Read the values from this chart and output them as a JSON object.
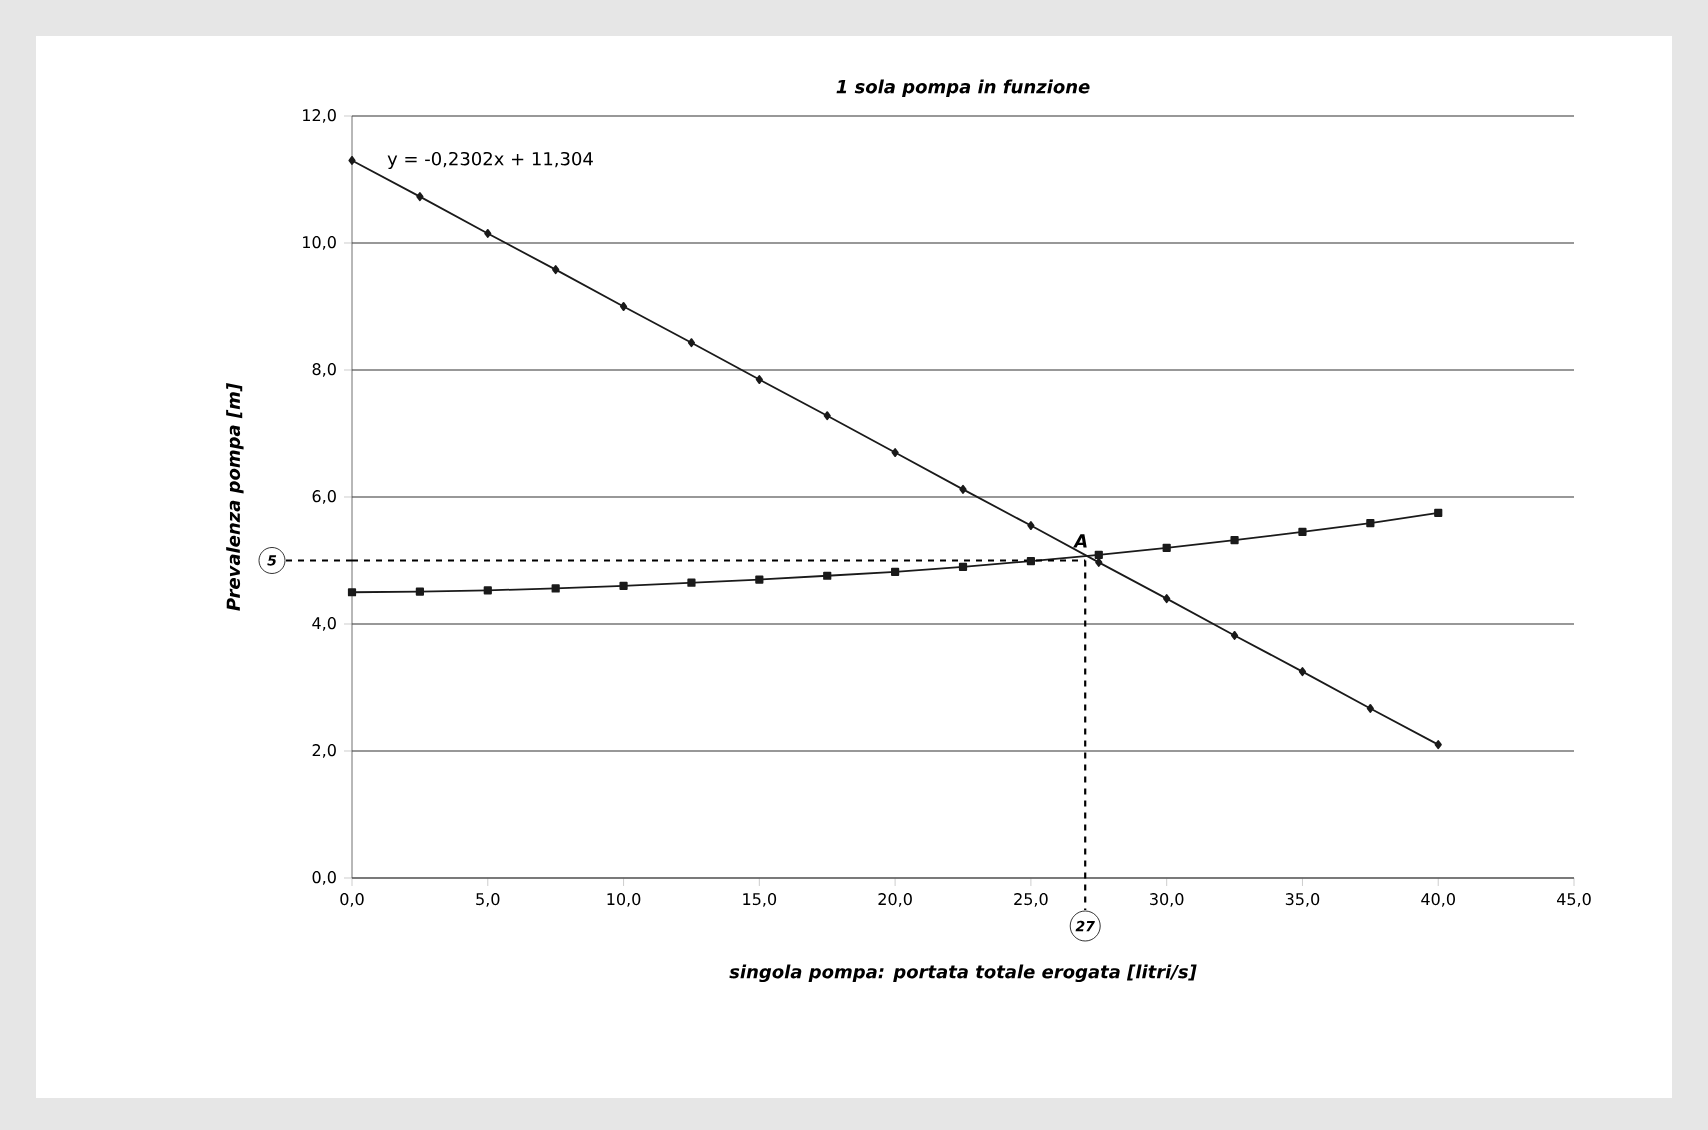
{
  "chart_data": {
    "type": "line",
    "title": "1 sola pompa in funzione",
    "xlabel": "singola pompa:   portata totale erogata [litri/s]",
    "ylabel": "Prevalenza  pompa [m]",
    "xlim": [
      0,
      45
    ],
    "ylim": [
      0,
      12
    ],
    "xticks": [
      {
        "value": 0,
        "label": "0,0"
      },
      {
        "value": 5,
        "label": "5,0"
      },
      {
        "value": 10,
        "label": "10,0"
      },
      {
        "value": 15,
        "label": "15,0"
      },
      {
        "value": 20,
        "label": "20,0"
      },
      {
        "value": 25,
        "label": "25,0"
      },
      {
        "value": 30,
        "label": "30,0"
      },
      {
        "value": 35,
        "label": "35,0"
      },
      {
        "value": 40,
        "label": "40,0"
      },
      {
        "value": 45,
        "label": "45,0"
      }
    ],
    "yticks": [
      {
        "value": 0,
        "label": "0,0"
      },
      {
        "value": 2,
        "label": "2,0"
      },
      {
        "value": 4,
        "label": "4,0"
      },
      {
        "value": 6,
        "label": "6,0"
      },
      {
        "value": 8,
        "label": "8,0"
      },
      {
        "value": 10,
        "label": "10,0"
      },
      {
        "value": 12,
        "label": "12,0"
      }
    ],
    "grid": "y",
    "x": [
      0,
      2.5,
      5,
      7.5,
      10,
      12.5,
      15,
      17.5,
      20,
      22.5,
      25,
      27.5,
      30,
      32.5,
      35,
      37.5,
      40
    ],
    "series": [
      {
        "color": "#1a1a1a",
        "marker": "diamond",
        "line_style": "solid",
        "values": [
          11.3,
          10.73,
          10.15,
          9.58,
          9.0,
          8.43,
          7.85,
          7.28,
          6.7,
          6.12,
          5.55,
          4.97,
          4.4,
          3.82,
          3.25,
          2.67,
          2.1
        ]
      },
      {
        "color": "#1a1a1a",
        "marker": "square",
        "line_style": "solid",
        "values": [
          4.5,
          4.51,
          4.53,
          4.56,
          4.6,
          4.65,
          4.7,
          4.76,
          4.82,
          4.9,
          4.99,
          5.09,
          5.2,
          5.32,
          5.45,
          5.59,
          5.75
        ]
      }
    ],
    "ref_lines": [
      {
        "axis": "y",
        "value": 5,
        "label": "5",
        "line_style": "dashed"
      },
      {
        "axis": "x",
        "value": 27,
        "label": "27",
        "line_style": "dashed"
      }
    ],
    "annotations": [
      "y = -0,2302x + 11,304",
      {
        "text": "A",
        "x": 27,
        "y": 5
      }
    ]
  }
}
